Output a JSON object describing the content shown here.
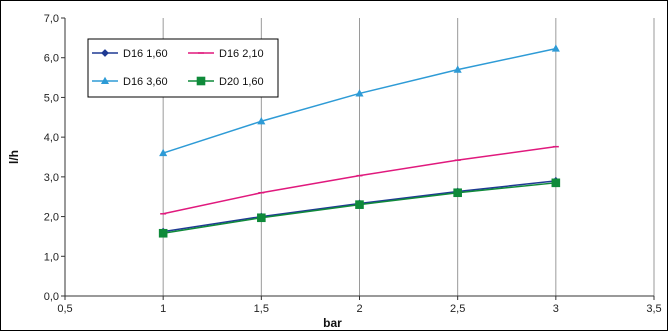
{
  "chart_data": {
    "type": "line",
    "xlabel": "bar",
    "ylabel": "l/h",
    "xlim": [
      0.5,
      3.5
    ],
    "ylim": [
      0.0,
      7.0
    ],
    "x_ticks": [
      "0,5",
      "1",
      "1,5",
      "2",
      "2,5",
      "3",
      "3,5"
    ],
    "y_ticks": [
      "0,0",
      "1,0",
      "2,0",
      "3,0",
      "4,0",
      "5,0",
      "6,0",
      "7,0"
    ],
    "grid": "vertical",
    "legend_position": "top-left",
    "x": [
      1,
      1.5,
      2,
      2.5,
      3
    ],
    "series": [
      {
        "name": "D16 1,60",
        "color": "#1f3a93",
        "marker": "diamond",
        "values": [
          1.62,
          2.0,
          2.33,
          2.63,
          2.9
        ]
      },
      {
        "name": "D16 2,10",
        "color": "#e0197d",
        "marker": "dash",
        "values": [
          2.07,
          2.6,
          3.03,
          3.42,
          3.76
        ]
      },
      {
        "name": "D16 3,60",
        "color": "#2e9bd6",
        "marker": "triangle",
        "values": [
          3.6,
          4.4,
          5.1,
          5.7,
          6.23
        ]
      },
      {
        "name": "D20 1,60",
        "color": "#0f8a3a",
        "marker": "square",
        "values": [
          1.58,
          1.97,
          2.3,
          2.6,
          2.85
        ]
      }
    ]
  }
}
